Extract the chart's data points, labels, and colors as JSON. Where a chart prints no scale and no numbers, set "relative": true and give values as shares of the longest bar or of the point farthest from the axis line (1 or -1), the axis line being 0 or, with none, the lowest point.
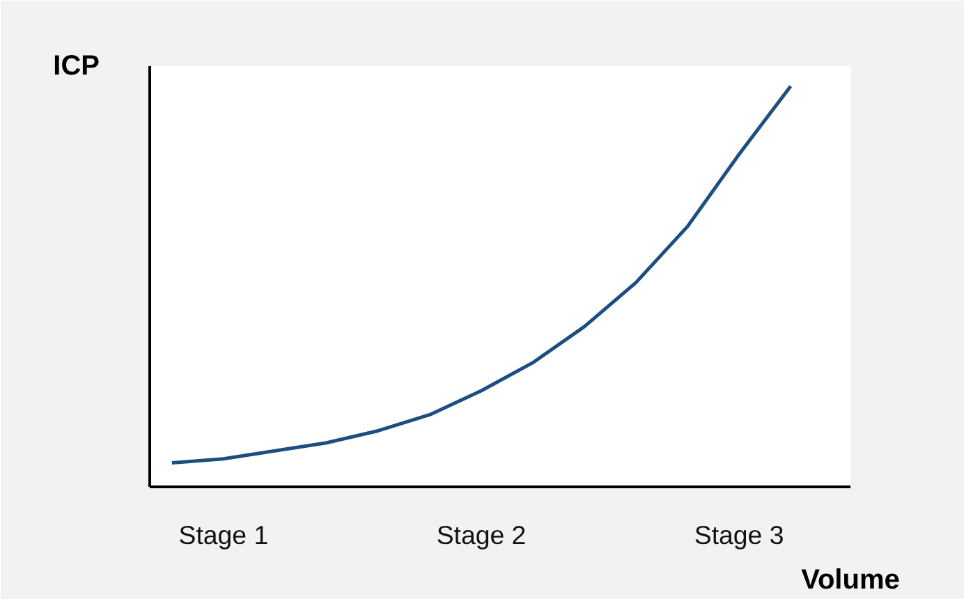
{
  "chart_data": {
    "type": "line",
    "xlabel": "Volume",
    "ylabel": "ICP",
    "relative": true,
    "categories": [
      null,
      "Stage 1",
      null,
      null,
      null,
      null,
      "Stage 2",
      null,
      null,
      null,
      null,
      "Stage 3",
      null
    ],
    "tick_labels": "x",
    "grid": false,
    "marker": "none",
    "line_style": "solid",
    "series": [
      {
        "color": "#1c4f80",
        "values": [
          0.06,
          0.07,
          0.09,
          0.11,
          0.14,
          0.18,
          0.24,
          0.31,
          0.4,
          0.51,
          0.65,
          0.83,
          1.0
        ]
      }
    ]
  }
}
